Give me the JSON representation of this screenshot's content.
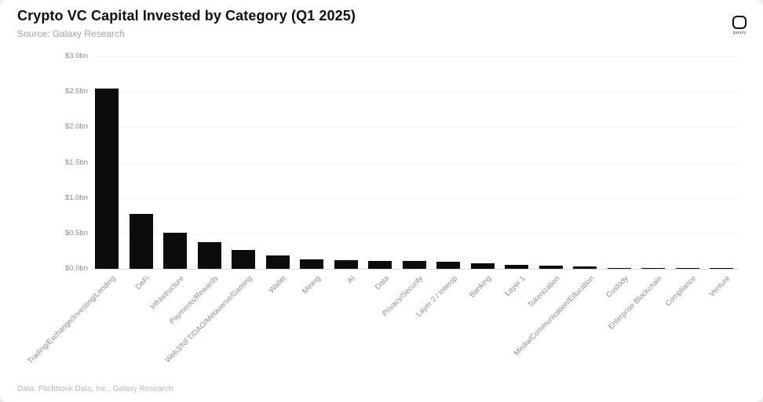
{
  "header": {
    "title": "Crypto VC Capital Invested by Category (Q1 2025)",
    "source": "Source: Galaxy Research",
    "logo_text": "galaxy"
  },
  "footer": {
    "text": "Data: Pitchbook Data, Inc., Galaxy Research"
  },
  "chart_data": {
    "type": "bar",
    "title": "Crypto VC Capital Invested by Category (Q1 2025)",
    "subtitle": "Source: Galaxy Research",
    "categories": [
      "Trading/Exchange/Investing/Lending",
      "DeFi",
      "Infrastructure",
      "Payments/Rewards",
      "Web3/NFT/DAO/Metaverse/Gaming",
      "Wallet",
      "Mining",
      "AI",
      "Data",
      "Privacy/Security",
      "Layer 2 / Interop",
      "Banking",
      "Layer 1",
      "Tokenization",
      "Media/Communication/Education",
      "Custody",
      "Enterprise Blockchain",
      "Compliance",
      "Venture"
    ],
    "values": [
      2.55,
      0.77,
      0.51,
      0.38,
      0.27,
      0.19,
      0.13,
      0.12,
      0.11,
      0.11,
      0.1,
      0.08,
      0.06,
      0.04,
      0.03,
      0.015,
      0.01,
      0.008,
      0.005
    ],
    "unit": "USD billions",
    "xlabel": "",
    "ylabel": "",
    "ylim": [
      0,
      3.0
    ],
    "ytick_step": 0.5,
    "ytick_labels": [
      "$0.0bn",
      "$0.5bn",
      "$1.0bn",
      "$1.5bn",
      "$2.0bn",
      "$2.5bn",
      "$3.0bn"
    ],
    "bar_color": "#0c0c0c",
    "grid": true,
    "legend": false,
    "attribution": "Data: Pitchbook Data, Inc., Galaxy Research"
  }
}
